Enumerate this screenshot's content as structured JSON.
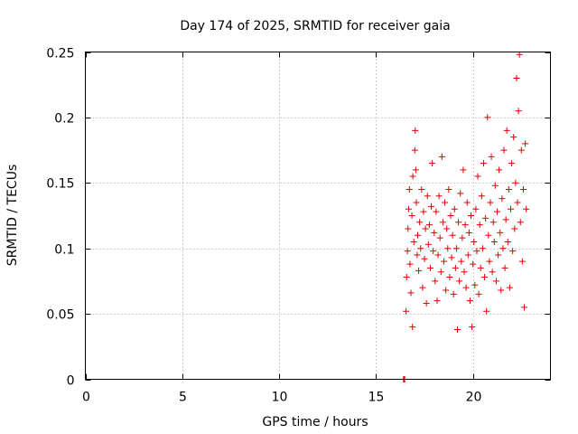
{
  "chart_data": {
    "type": "scatter",
    "title": "Day 174 of 2025, SRMTID for receiver gaia",
    "xlabel": "GPS time / hours",
    "ylabel": "SRMTID / TECUs",
    "xlim": [
      0,
      24
    ],
    "ylim": [
      0,
      0.25
    ],
    "x_ticks": [
      0,
      5,
      10,
      15,
      20
    ],
    "x_tick_labels": [
      "0",
      "5",
      "10",
      "15",
      "20"
    ],
    "y_ticks": [
      0,
      0.05,
      0.1,
      0.15,
      0.2,
      0.25
    ],
    "y_tick_labels": [
      "0",
      "0.05",
      "0.1",
      "0.15",
      "0.2",
      "0.25"
    ],
    "grid": true,
    "marker": "plus",
    "color": "#e00000",
    "series": [
      {
        "name": "SRMTID",
        "points": [
          [
            16.42,
            0.0
          ],
          [
            16.45,
            0.0
          ],
          [
            16.48,
            0.0
          ],
          [
            16.55,
            0.052
          ],
          [
            16.58,
            0.078
          ],
          [
            16.62,
            0.098
          ],
          [
            16.65,
            0.115
          ],
          [
            16.68,
            0.13
          ],
          [
            16.72,
            0.145
          ],
          [
            16.75,
            0.088
          ],
          [
            16.8,
            0.066
          ],
          [
            16.85,
            0.125
          ],
          [
            16.88,
            0.04
          ],
          [
            16.9,
            0.155
          ],
          [
            16.95,
            0.105
          ],
          [
            17.0,
            0.175
          ],
          [
            17.02,
            0.19
          ],
          [
            17.05,
            0.16
          ],
          [
            17.08,
            0.135
          ],
          [
            17.12,
            0.095
          ],
          [
            17.15,
            0.11
          ],
          [
            17.2,
            0.083
          ],
          [
            17.25,
            0.12
          ],
          [
            17.3,
            0.1
          ],
          [
            17.35,
            0.145
          ],
          [
            17.4,
            0.07
          ],
          [
            17.45,
            0.128
          ],
          [
            17.5,
            0.092
          ],
          [
            17.55,
            0.115
          ],
          [
            17.6,
            0.058
          ],
          [
            17.65,
            0.14
          ],
          [
            17.7,
            0.103
          ],
          [
            17.75,
            0.118
          ],
          [
            17.8,
            0.085
          ],
          [
            17.85,
            0.132
          ],
          [
            17.9,
            0.165
          ],
          [
            17.95,
            0.098
          ],
          [
            18.0,
            0.112
          ],
          [
            18.05,
            0.075
          ],
          [
            18.1,
            0.128
          ],
          [
            18.15,
            0.06
          ],
          [
            18.2,
            0.095
          ],
          [
            18.25,
            0.14
          ],
          [
            18.3,
            0.108
          ],
          [
            18.35,
            0.082
          ],
          [
            18.4,
            0.17
          ],
          [
            18.45,
            0.12
          ],
          [
            18.5,
            0.09
          ],
          [
            18.55,
            0.135
          ],
          [
            18.6,
            0.068
          ],
          [
            18.65,
            0.115
          ],
          [
            18.7,
            0.1
          ],
          [
            18.75,
            0.145
          ],
          [
            18.8,
            0.078
          ],
          [
            18.85,
            0.125
          ],
          [
            18.9,
            0.093
          ],
          [
            18.95,
            0.11
          ],
          [
            19.0,
            0.065
          ],
          [
            19.05,
            0.13
          ],
          [
            19.1,
            0.085
          ],
          [
            19.15,
            0.1
          ],
          [
            19.2,
            0.038
          ],
          [
            19.25,
            0.12
          ],
          [
            19.3,
            0.075
          ],
          [
            19.35,
            0.142
          ],
          [
            19.4,
            0.09
          ],
          [
            19.45,
            0.108
          ],
          [
            19.5,
            0.16
          ],
          [
            19.55,
            0.082
          ],
          [
            19.6,
            0.118
          ],
          [
            19.65,
            0.07
          ],
          [
            19.7,
            0.135
          ],
          [
            19.75,
            0.095
          ],
          [
            19.8,
            0.112
          ],
          [
            19.85,
            0.06
          ],
          [
            19.9,
            0.125
          ],
          [
            19.95,
            0.04
          ],
          [
            20.0,
            0.088
          ],
          [
            20.05,
            0.105
          ],
          [
            20.1,
            0.072
          ],
          [
            20.15,
            0.13
          ],
          [
            20.2,
            0.098
          ],
          [
            20.25,
            0.155
          ],
          [
            20.3,
            0.065
          ],
          [
            20.35,
            0.118
          ],
          [
            20.4,
            0.085
          ],
          [
            20.45,
            0.14
          ],
          [
            20.5,
            0.1
          ],
          [
            20.55,
            0.165
          ],
          [
            20.6,
            0.078
          ],
          [
            20.65,
            0.123
          ],
          [
            20.7,
            0.052
          ],
          [
            20.75,
            0.2
          ],
          [
            20.8,
            0.11
          ],
          [
            20.85,
            0.09
          ],
          [
            20.9,
            0.135
          ],
          [
            20.95,
            0.17
          ],
          [
            21.0,
            0.082
          ],
          [
            21.05,
            0.12
          ],
          [
            21.1,
            0.105
          ],
          [
            21.15,
            0.148
          ],
          [
            21.2,
            0.075
          ],
          [
            21.25,
            0.128
          ],
          [
            21.3,
            0.095
          ],
          [
            21.35,
            0.16
          ],
          [
            21.4,
            0.112
          ],
          [
            21.45,
            0.068
          ],
          [
            21.5,
            0.138
          ],
          [
            21.55,
            0.1
          ],
          [
            21.6,
            0.175
          ],
          [
            21.65,
            0.085
          ],
          [
            21.7,
            0.122
          ],
          [
            21.75,
            0.19
          ],
          [
            21.8,
            0.105
          ],
          [
            21.85,
            0.145
          ],
          [
            21.9,
            0.07
          ],
          [
            21.95,
            0.13
          ],
          [
            22.0,
            0.165
          ],
          [
            22.05,
            0.098
          ],
          [
            22.1,
            0.185
          ],
          [
            22.15,
            0.115
          ],
          [
            22.2,
            0.15
          ],
          [
            22.25,
            0.23
          ],
          [
            22.3,
            0.135
          ],
          [
            22.35,
            0.205
          ],
          [
            22.4,
            0.248
          ],
          [
            22.45,
            0.12
          ],
          [
            22.5,
            0.175
          ],
          [
            22.55,
            0.09
          ],
          [
            22.6,
            0.145
          ],
          [
            22.65,
            0.055
          ],
          [
            22.7,
            0.18
          ],
          [
            22.75,
            0.13
          ]
        ]
      }
    ]
  }
}
